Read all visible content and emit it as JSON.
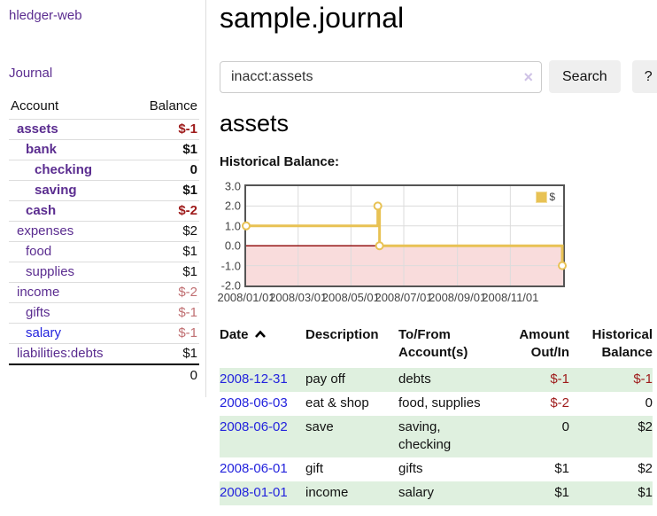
{
  "app": {
    "brand": "hledger-web",
    "journal_link": "Journal"
  },
  "sidebar": {
    "col_account": "Account",
    "col_balance": "Balance",
    "rows": [
      {
        "name": "assets",
        "balance": "$-1"
      },
      {
        "name": "bank",
        "balance": "$1"
      },
      {
        "name": "checking",
        "balance": "0"
      },
      {
        "name": "saving",
        "balance": "$1"
      },
      {
        "name": "cash",
        "balance": "$-2"
      },
      {
        "name": "expenses",
        "balance": "$2"
      },
      {
        "name": "food",
        "balance": "$1"
      },
      {
        "name": "supplies",
        "balance": "$1"
      },
      {
        "name": "income",
        "balance": "$-2"
      },
      {
        "name": "gifts",
        "balance": "$-1"
      },
      {
        "name": "salary",
        "balance": "$-1"
      },
      {
        "name": "liabilities:debts",
        "balance": "$1"
      }
    ],
    "total": "0"
  },
  "main": {
    "title": "sample.journal",
    "search": {
      "value": "inacct:assets",
      "clear_icon": "×",
      "button": "Search",
      "help": "?"
    },
    "account_heading": "assets",
    "chart_label": "Historical Balance:"
  },
  "chart_data": {
    "type": "line",
    "title": "Historical Balance",
    "step": true,
    "series": [
      {
        "name": "$",
        "points": [
          [
            "2008-01-01",
            1
          ],
          [
            "2008-06-01",
            2
          ],
          [
            "2008-06-03",
            0
          ],
          [
            "2008-12-31",
            -1
          ]
        ]
      }
    ],
    "x_ticks": [
      "2008/01/01",
      "2008/03/01",
      "2008/05/01",
      "2008/07/01",
      "2008/09/01",
      "2008/11/01"
    ],
    "y_ticks": [
      "3.0",
      "2.0",
      "1.0",
      "0.0",
      "-1.0",
      "-2.0"
    ],
    "xlim": [
      "2008-01-01",
      "2009-01-01"
    ],
    "ylim": [
      -2,
      3
    ],
    "grid": true,
    "legend": {
      "position": "top-right",
      "label": "$"
    },
    "line_color": "#e8c254",
    "marker": "open-circle",
    "zero_line_color": "#8b0000",
    "negative_region_fill": "#f9dcdc"
  },
  "register": {
    "headers": {
      "date": "Date",
      "description": "Description",
      "account_line1": "To/From",
      "account_line2": "Account(s)",
      "amount_line1": "Amount",
      "amount_line2": "Out/In",
      "balance_line1": "Historical",
      "balance_line2": "Balance"
    },
    "rows": [
      {
        "date": "2008-12-31",
        "description": "pay off",
        "accounts": "debts",
        "amount": "$-1",
        "balance": "$-1"
      },
      {
        "date": "2008-06-03",
        "description": "eat & shop",
        "accounts": "food, supplies",
        "amount": "$-2",
        "balance": "0"
      },
      {
        "date": "2008-06-02",
        "description": "save",
        "accounts": "saving, checking",
        "amount": "0",
        "balance": "$2"
      },
      {
        "date": "2008-06-01",
        "description": "gift",
        "accounts": "gifts",
        "amount": "$1",
        "balance": "$2"
      },
      {
        "date": "2008-01-01",
        "description": "income",
        "accounts": "salary",
        "amount": "$1",
        "balance": "$1"
      }
    ]
  },
  "colors": {
    "link_purple": "#5b2d90",
    "link_blue": "#2323dd",
    "negative_strong": "#9e1a1a",
    "negative_muted": "#c06f72",
    "row_green": "#dff0df",
    "chart_line_gold": "#e8c254",
    "chart_negative_pink": "#f9dcdc",
    "chart_zero_line": "#8b0000"
  }
}
